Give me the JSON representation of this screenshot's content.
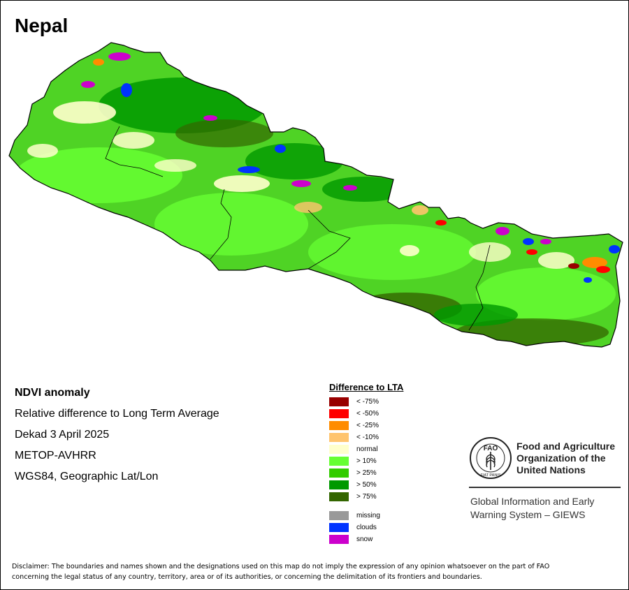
{
  "map_title": "Nepal",
  "info_lines": [
    "NDVI anomaly",
    "Relative difference to Long Term Average",
    "Dekad 3 April 2025",
    "METOP-AVHRR",
    "WGS84, Geographic Lat/Lon"
  ],
  "legend": {
    "title": "Difference to LTA",
    "classes": [
      {
        "label": "< -75%",
        "color": "#990000"
      },
      {
        "label": "< -50%",
        "color": "#ff0000"
      },
      {
        "label": "< -25%",
        "color": "#ff8c00"
      },
      {
        "label": "< -10%",
        "color": "#ffc46e"
      },
      {
        "label": "normal",
        "color": "#ffffcc"
      },
      {
        "label": "> 10%",
        "color": "#66ff33"
      },
      {
        "label": "> 25%",
        "color": "#33cc00"
      },
      {
        "label": "> 50%",
        "color": "#009900"
      },
      {
        "label": "> 75%",
        "color": "#336600"
      }
    ],
    "other": [
      {
        "label": "missing",
        "color": "#999999"
      },
      {
        "label": "clouds",
        "color": "#0033ff"
      },
      {
        "label": "snow",
        "color": "#cc00cc"
      }
    ]
  },
  "fao": {
    "name_lines": [
      "Food and Agriculture",
      "Organization of the",
      "United Nations"
    ],
    "logo_text": "FAO",
    "motto": "FIAT PANIS"
  },
  "giews_lines": [
    "Global Information and Early",
    "Warning System – GIEWS"
  ],
  "disclaimer_lines": [
    "Disclaimer: The boundaries and names shown and the designations used on this map do not imply the expression of any opinion whatsoever on the part of FAO",
    "concerning the legal status of any country, territory, area or of its authorities, or concerning the delimitation of its frontiers and boundaries."
  ],
  "colors": {
    "base_green": "#4fd325",
    "light_green": "#66ff33",
    "mid_green": "#33cc00",
    "dark_green": "#009900",
    "darkest_green": "#336600",
    "normal": "#ffffcc",
    "slight_deficit": "#ffc46e",
    "deficit": "#ff8c00",
    "severe": "#ff0000",
    "extreme": "#990000",
    "clouds": "#0033ff",
    "snow": "#cc00cc",
    "missing": "#999999"
  }
}
